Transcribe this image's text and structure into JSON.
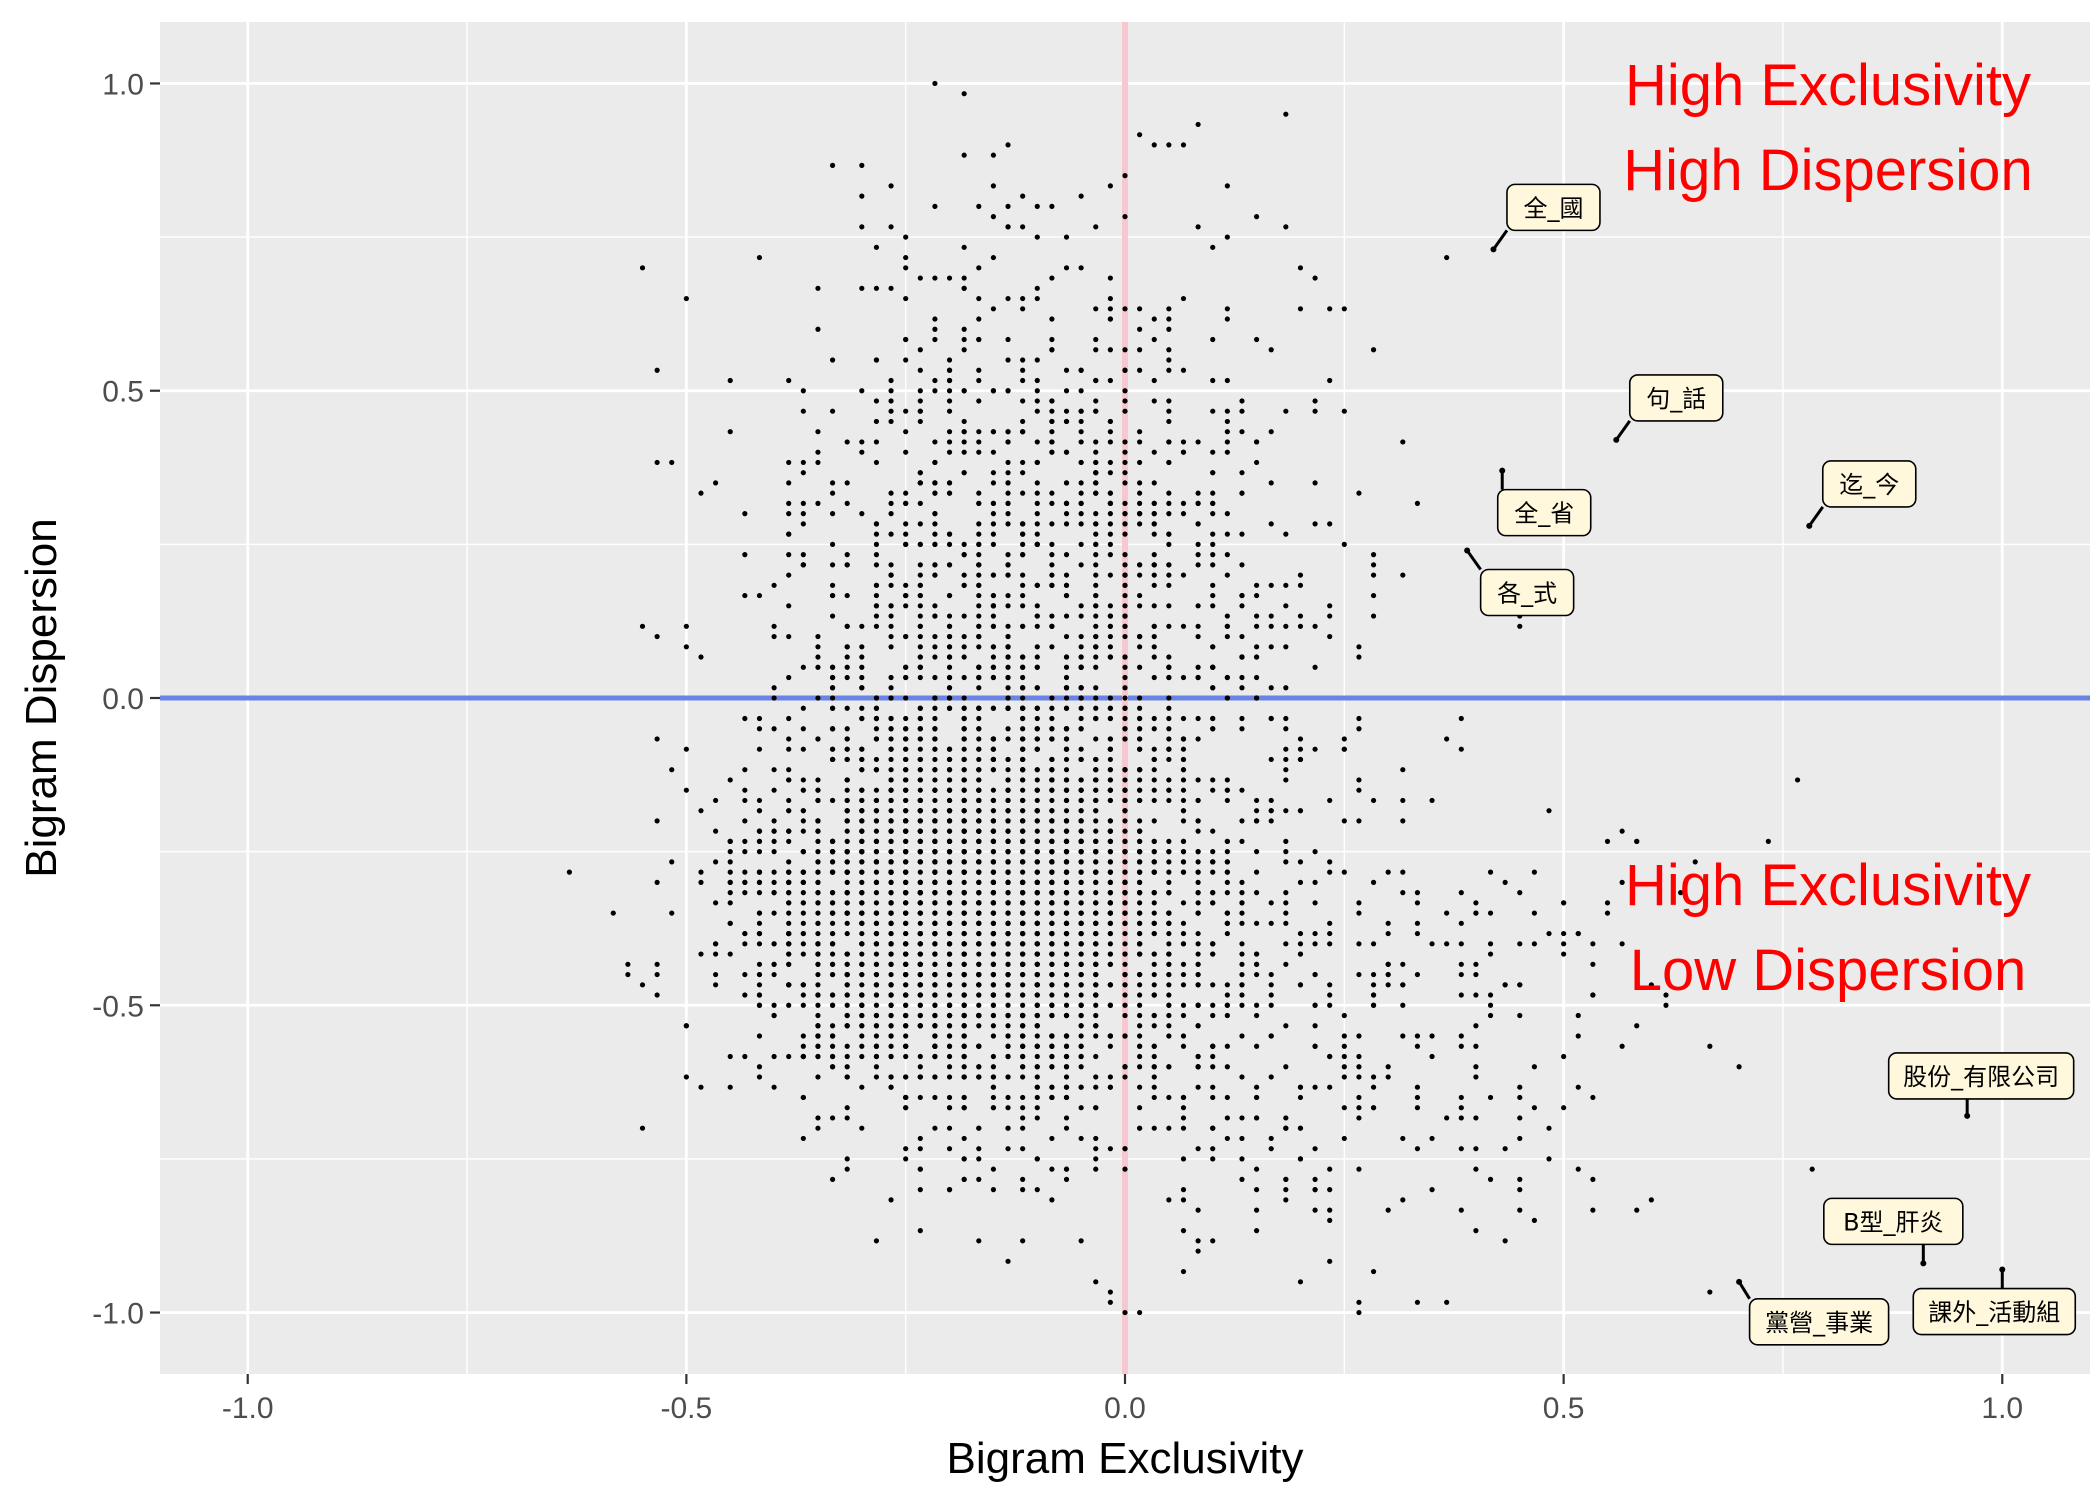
{
  "chart_data": {
    "type": "scatter",
    "xlabel": "Bigram Exclusivity",
    "ylabel": "Bigram Dispersion",
    "xlim": [
      -1.1,
      1.1
    ],
    "ylim": [
      -1.1,
      1.1
    ],
    "x_ticks": [
      -1.0,
      -0.5,
      0.0,
      0.5,
      1.0
    ],
    "y_ticks": [
      -1.0,
      -0.5,
      0.0,
      0.5,
      1.0
    ],
    "x_tick_labels": [
      "-1.0",
      "-0.5",
      "0.0",
      "0.5",
      "1.0"
    ],
    "y_tick_labels": [
      "-1.0",
      "-0.5",
      "0.0",
      "0.5",
      "1.0"
    ],
    "grid": true,
    "reference_lines": [
      {
        "orientation": "horizontal",
        "value": 0.0,
        "color": "#6a84e6"
      },
      {
        "orientation": "vertical",
        "value": 0.0,
        "color": "#f8c8d0"
      }
    ],
    "quadrant_labels": [
      {
        "lines": [
          "High Exclusivity",
          "High Dispersion"
        ],
        "color": "#ff0000"
      },
      {
        "lines": [
          "High Exclusivity",
          "Low Dispersion"
        ],
        "color": "#ff0000"
      }
    ],
    "labeled_points": [
      {
        "label": "全_國",
        "x": 0.42,
        "y": 0.73
      },
      {
        "label": "句_話",
        "x": 0.56,
        "y": 0.42
      },
      {
        "label": "全_省",
        "x": 0.43,
        "y": 0.37
      },
      {
        "label": "迄_今",
        "x": 0.78,
        "y": 0.28
      },
      {
        "label": "各_式",
        "x": 0.39,
        "y": 0.24
      },
      {
        "label": "股份_有限公司",
        "x": 0.96,
        "y": -0.68
      },
      {
        "label": "B型_肝炎",
        "x": 0.91,
        "y": -0.92
      },
      {
        "label": "課外_活動組",
        "x": 1.0,
        "y": -0.93
      },
      {
        "label": "黨營_事業",
        "x": 0.7,
        "y": -0.95
      }
    ],
    "point_cloud": {
      "n": 4500,
      "seed": 7,
      "clusters": [
        {
          "weight": 0.55,
          "mx": -0.17,
          "sx": 0.13,
          "my": -0.34,
          "sy": 0.16
        },
        {
          "weight": 0.35,
          "mx": -0.1,
          "sx": 0.16,
          "my": 0.1,
          "sy": 0.32
        },
        {
          "weight": 0.1,
          "mx": 0.2,
          "sx": 0.22,
          "my": -0.55,
          "sy": 0.22
        }
      ]
    },
    "colors": {
      "panel_bg": "#ebebeb",
      "grid_major": "#ffffff",
      "points": "#000000",
      "label_fill": "#fff8dc"
    }
  }
}
